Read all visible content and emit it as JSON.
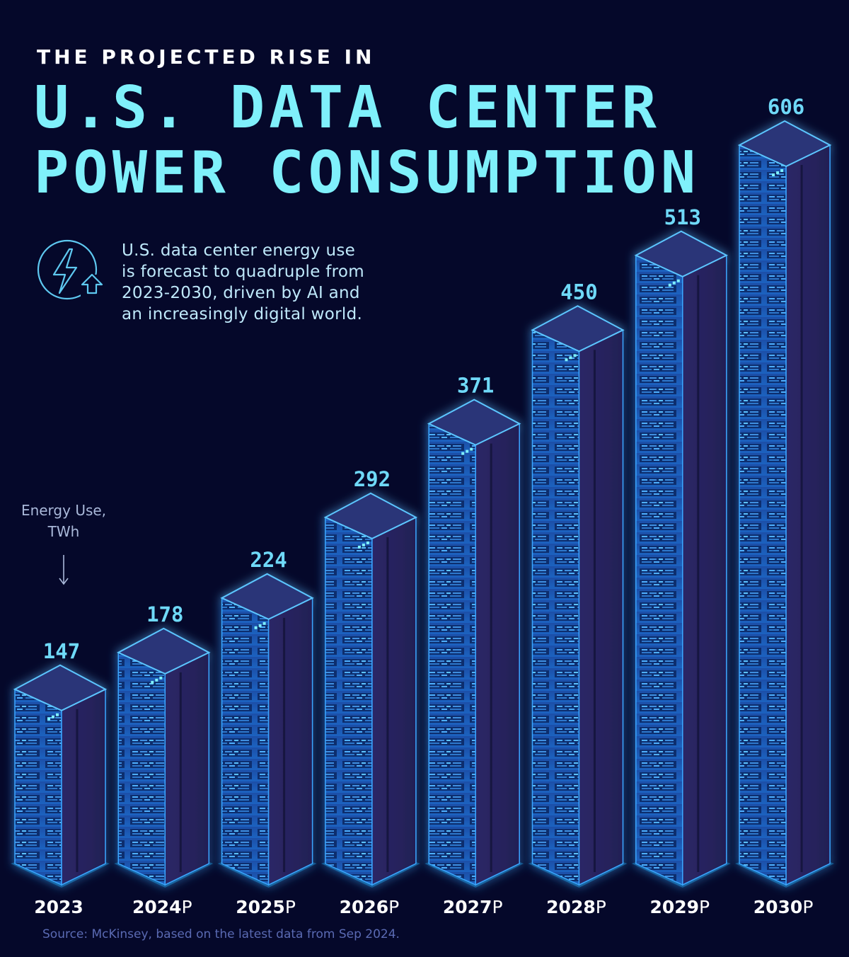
{
  "header": {
    "kicker": "THE PROJECTED RISE IN",
    "title_line1": "U.S. DATA CENTER",
    "title_line2": "POWER CONSUMPTION"
  },
  "note": {
    "icon": "lightning-arrow-up-icon",
    "line1": "U.S. data center energy use",
    "line2": "is forecast to quadruple from",
    "line3": "2023-2030, driven by AI and",
    "line4": "an increasingly digital world."
  },
  "unit_label": {
    "line1": "Energy Use,",
    "line2": "TWh"
  },
  "source": "Source: McKinsey, based on the latest data from Sep 2024.",
  "colors": {
    "background": "#05082a",
    "title": "#7ff0fb",
    "value_label": "#6fd9f8",
    "rack_front": "#1f5fb8",
    "rack_side": "#2a2660",
    "rack_top": "#2a3478",
    "glow": "#29b6ff"
  },
  "chart_data": {
    "type": "bar",
    "style": "isometric server racks",
    "categories": [
      "2023",
      "2024",
      "2025",
      "2026",
      "2027",
      "2028",
      "2029",
      "2030"
    ],
    "category_suffix": [
      "",
      "P",
      "P",
      "P",
      "P",
      "P",
      "P",
      "P"
    ],
    "values": [
      147,
      178,
      224,
      292,
      371,
      450,
      513,
      606
    ],
    "ylabel": "Energy Use, TWh",
    "ylim": [
      0,
      606
    ],
    "grid": false,
    "legend": "none"
  }
}
